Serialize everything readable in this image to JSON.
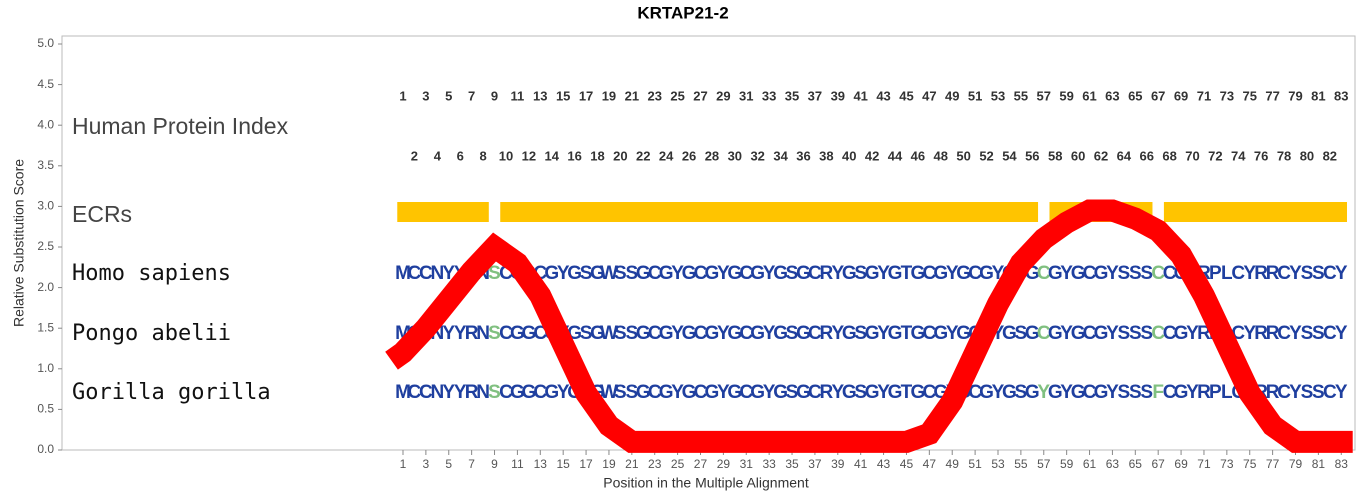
{
  "title": "KRTAP21-2",
  "chart_data": {
    "type": "line",
    "xlabel": "Position in the Multiple Alignment",
    "ylabel": "Relative Substitution Score",
    "xlim": [
      -28.8,
      84.2
    ],
    "ylim": [
      0,
      5
    ],
    "xticks": [
      1,
      3,
      5,
      7,
      9,
      11,
      13,
      15,
      17,
      19,
      21,
      23,
      25,
      27,
      29,
      31,
      33,
      35,
      37,
      39,
      41,
      43,
      45,
      47,
      49,
      51,
      53,
      55,
      57,
      59,
      61,
      63,
      65,
      67,
      69,
      71,
      73,
      75,
      77,
      79,
      81,
      83
    ],
    "yticks": [
      {
        "value": 0,
        "label": "0.0"
      },
      0.5,
      {
        "value": 1,
        "label": "1.0"
      },
      1.5,
      {
        "value": 2,
        "label": "2.0"
      },
      2.5,
      {
        "value": 3,
        "label": "3.0"
      },
      3.5,
      {
        "value": 4,
        "label": "4.0"
      },
      4.5,
      {
        "value": 5,
        "label": "5.0"
      }
    ],
    "series": [
      {
        "color": "#ff0000",
        "x": [
          0,
          1,
          3,
          5,
          7,
          9,
          11,
          13,
          15,
          17,
          19,
          21,
          23,
          25,
          27,
          29,
          31,
          33,
          35,
          37,
          39,
          41,
          43,
          45,
          47,
          49,
          51,
          53,
          55,
          57,
          59,
          61,
          63,
          65,
          67,
          69,
          71,
          73,
          75,
          77,
          79,
          81,
          83,
          84
        ],
        "values": [
          1.1,
          1.2,
          1.5,
          1.85,
          2.2,
          2.5,
          2.3,
          1.9,
          1.3,
          0.7,
          0.3,
          0.1,
          0.1,
          0.1,
          0.1,
          0.1,
          0.1,
          0.1,
          0.1,
          0.1,
          0.1,
          0.1,
          0.1,
          0.1,
          0.2,
          0.6,
          1.2,
          1.8,
          2.3,
          2.6,
          2.8,
          2.95,
          2.95,
          2.85,
          2.7,
          2.4,
          1.9,
          1.3,
          0.7,
          0.3,
          0.1,
          0.1,
          0.1,
          0.1
        ]
      }
    ]
  },
  "track_labels": {
    "index": "Human Protein Index",
    "ecrs": "ECRs"
  },
  "human_protein_index": [
    1,
    2,
    3,
    4,
    5,
    6,
    7,
    8,
    9,
    10,
    11,
    12,
    13,
    14,
    15,
    16,
    17,
    18,
    19,
    20,
    21,
    22,
    23,
    24,
    25,
    26,
    27,
    28,
    29,
    30,
    31,
    32,
    33,
    34,
    35,
    36,
    37,
    38,
    39,
    40,
    41,
    42,
    43,
    44,
    45,
    46,
    47,
    48,
    49,
    50,
    51,
    52,
    53,
    54,
    55,
    56,
    57,
    58,
    59,
    60,
    61,
    62,
    63,
    64,
    65,
    66,
    67,
    68,
    69,
    70,
    71,
    72,
    73,
    74,
    75,
    76,
    77,
    78,
    79,
    80,
    81,
    82,
    83
  ],
  "ecrs": [
    {
      "start": 1,
      "end": 8
    },
    {
      "start": 10,
      "end": 56
    },
    {
      "start": 58,
      "end": 66
    },
    {
      "start": 68,
      "end": 83
    }
  ],
  "ecr_color": "#ffc400",
  "sequence_color": "#1f3f9f",
  "highlight_color": "#80c080",
  "species": [
    {
      "name": "Homo sapiens",
      "sequence": "MCCNYYRNSCGGCGYGSGWSSGCGYGCGYGCGYGSGCRYGSGYGTGCGYGCGYGSGCGYGCGYSSSCCGYRPLCYRRCYSSCY",
      "highlight": [
        9,
        57,
        67
      ]
    },
    {
      "name": "Pongo abelii",
      "sequence": "MCCNYYRNSCGGCGYGSGWSSGCGYGCGYGCGYGSGCRYGSGYGTGCGYGCGYGSGCGYGCGYSSSCCGYRPLCYRRCYSSCY",
      "highlight": [
        9,
        57,
        67
      ]
    },
    {
      "name": "Gorilla gorilla",
      "sequence": "MCCNYYRNSCGGCGYGSGWSSGCGYGCGYGCGYGSGCRYGSGYGTGCGYGCGYGSGYGYGCGYSSSFCGYRPLCYRRCYSSCY",
      "highlight": [
        9,
        57,
        67
      ]
    }
  ]
}
